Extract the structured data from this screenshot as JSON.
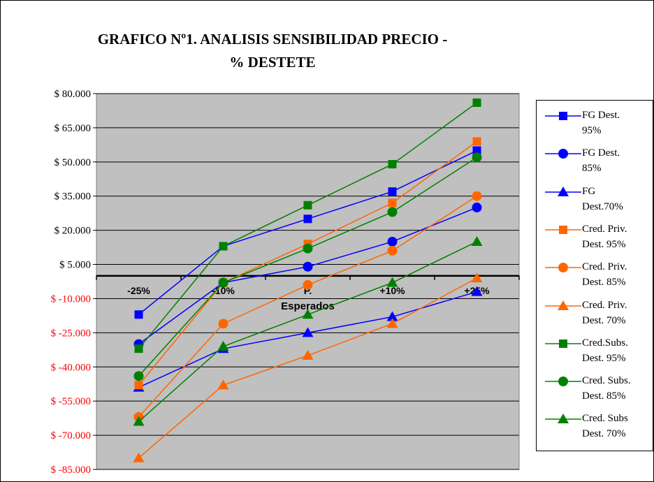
{
  "chart_data": {
    "type": "line",
    "title": "GRAFICO Nº1. ANALISIS SENSIBILIDAD PRECIO - % DESTETE",
    "xlabel": "Esperados",
    "ylabel": "",
    "categories": [
      "-25%",
      "-10%",
      "P.",
      "+10%",
      "+25%"
    ],
    "yticks": [
      "$ 80.000",
      "$ 65.000",
      "$ 50.000",
      "$ 35.000",
      "$ 20.000",
      "$ 5.000",
      "$ -10.000",
      "$ -25.000",
      "$ -40.000",
      "$ -55.000",
      "$ -70.000",
      "$ -85.000"
    ],
    "ytick_values": [
      80000,
      65000,
      50000,
      35000,
      20000,
      5000,
      -10000,
      -25000,
      -40000,
      -55000,
      -70000,
      -85000
    ],
    "ylim": [
      -85000,
      80000
    ],
    "grid": true,
    "plot_background": "#c0c0c0",
    "negative_tick_color": "#ff0000",
    "legend_position": "right",
    "series": [
      {
        "name": "FG Dest. 95%",
        "color": "#0000ff",
        "marker": "square",
        "values": [
          -17000,
          13000,
          25000,
          37000,
          55000
        ]
      },
      {
        "name": "FG Dest. 85%",
        "color": "#0000ff",
        "marker": "circle",
        "values": [
          -30000,
          -3000,
          4000,
          15000,
          30000
        ]
      },
      {
        "name": "FG Dest.70%",
        "color": "#0000ff",
        "marker": "triangle",
        "values": [
          -49000,
          -32000,
          -25000,
          -18000,
          -7000
        ]
      },
      {
        "name": "Cred. Priv. Dest. 95%",
        "color": "#ff6600",
        "marker": "square",
        "values": [
          -48000,
          -3000,
          14000,
          32000,
          59000
        ]
      },
      {
        "name": "Cred. Priv. Dest. 85%",
        "color": "#ff6600",
        "marker": "circle",
        "values": [
          -62000,
          -21000,
          -4000,
          11000,
          35000
        ]
      },
      {
        "name": "Cred. Priv. Dest. 70%",
        "color": "#ff6600",
        "marker": "triangle",
        "values": [
          -80000,
          -48000,
          -35000,
          -21000,
          -1000
        ]
      },
      {
        "name": "Cred.Subs. Dest. 95%",
        "color": "#008000",
        "marker": "square",
        "values": [
          -32000,
          13000,
          31000,
          49000,
          76000
        ]
      },
      {
        "name": "Cred. Subs. Dest. 85%",
        "color": "#008000",
        "marker": "circle",
        "values": [
          -44000,
          -3000,
          12000,
          28000,
          52000
        ]
      },
      {
        "name": "Cred. Subs Dest. 70%",
        "color": "#008000",
        "marker": "triangle",
        "values": [
          -64000,
          -31000,
          -17000,
          -3000,
          15000
        ]
      }
    ]
  },
  "legend_lines": [
    [
      "FG Dest.",
      "95%"
    ],
    [
      "FG Dest.",
      "85%"
    ],
    [
      "FG",
      "Dest.70%"
    ],
    [
      "Cred. Priv.",
      "Dest. 95%"
    ],
    [
      "Cred. Priv.",
      "Dest. 85%"
    ],
    [
      "Cred. Priv.",
      "Dest. 70%"
    ],
    [
      "Cred.Subs.",
      "Dest. 95%"
    ],
    [
      "Cred. Subs.",
      "Dest. 85%"
    ],
    [
      "Cred.  Subs",
      "Dest. 70%"
    ]
  ]
}
